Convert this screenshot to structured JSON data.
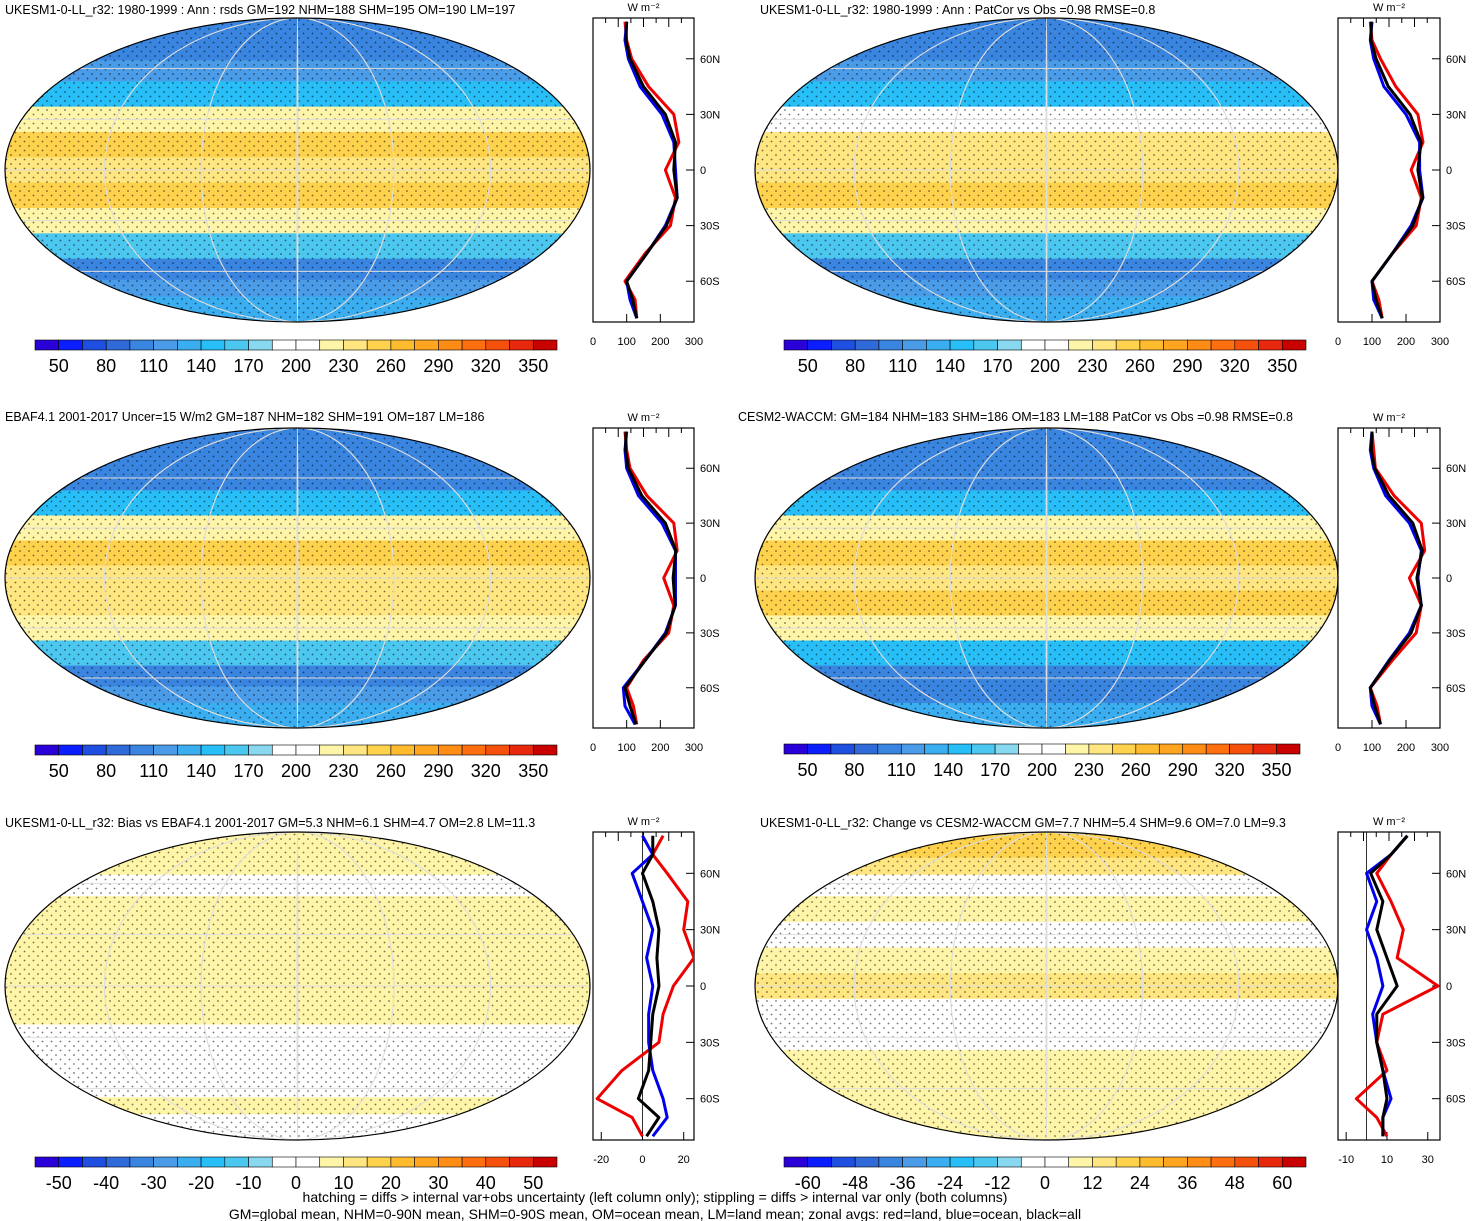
{
  "chart_data": [
    {
      "type": "map",
      "title": "UKESM1-0-LL_r32: 1980-1999 : Ann : rsds GM=192 NHM=188 SHM=195 OM=190 LM=197",
      "colorbar": {
        "range": [
          35,
          365
        ],
        "ticks": [
          50,
          80,
          110,
          140,
          170,
          200,
          230,
          260,
          290,
          320,
          350
        ]
      },
      "zonal": {
        "type": "line",
        "unit": "W m⁻²",
        "y": [
          80,
          70,
          60,
          45,
          30,
          15,
          0,
          -15,
          -30,
          -45,
          -60,
          -70,
          -80
        ],
        "ylim": [
          -82,
          82
        ],
        "yticks": [
          {
            "value": 60,
            "label": "60N"
          },
          {
            "value": 30,
            "label": "30N"
          },
          0,
          {
            "value": -30,
            "label": "30S"
          },
          {
            "value": -60,
            "label": "60S"
          }
        ],
        "xlim": [
          0,
          300
        ],
        "xticks": [
          0,
          100,
          200,
          300
        ],
        "series": [
          {
            "color": "#ee0000",
            "values": [
              95,
              100,
              115,
              165,
              240,
              255,
              215,
              245,
              230,
              155,
              95,
              125,
              130
            ]
          },
          {
            "color": "#0000ee",
            "values": [
              100,
              95,
              105,
              140,
              205,
              240,
              245,
              250,
              215,
              160,
              100,
              110,
              130
            ]
          },
          {
            "color": "#000000",
            "values": [
              100,
              98,
              110,
              150,
              215,
              245,
              240,
              250,
              218,
              160,
              100,
              118,
              130
            ]
          }
        ]
      }
    },
    {
      "type": "map",
      "title": "UKESM1-0-LL_r32: 1980-1999 : Ann : PatCor vs Obs =0.98 RMSE=0.8",
      "colorbar": {
        "range": [
          35,
          365
        ],
        "ticks": [
          50,
          80,
          110,
          140,
          170,
          200,
          230,
          260,
          290,
          320,
          350
        ]
      },
      "zonal": {
        "type": "line",
        "unit": "W m⁻²",
        "y": [
          80,
          70,
          60,
          45,
          30,
          15,
          0,
          -15,
          -30,
          -45,
          -60,
          -70,
          -80
        ],
        "ylim": [
          -82,
          82
        ],
        "yticks": [
          {
            "value": 60,
            "label": "60N"
          },
          {
            "value": 30,
            "label": "30N"
          },
          0,
          {
            "value": -30,
            "label": "30S"
          },
          {
            "value": -60,
            "label": "60S"
          }
        ],
        "xlim": [
          0,
          300
        ],
        "xticks": [
          0,
          100,
          200,
          300
        ],
        "series": [
          {
            "color": "#ee0000",
            "values": [
              95,
              100,
              125,
              170,
              235,
              250,
              215,
              245,
              230,
              160,
              100,
              120,
              130
            ]
          },
          {
            "color": "#0000ee",
            "values": [
              100,
              95,
              105,
              135,
              200,
              240,
              240,
              250,
              215,
              160,
              100,
              105,
              130
            ]
          },
          {
            "color": "#000000",
            "values": [
              98,
              97,
              112,
              148,
              212,
              244,
              235,
              248,
              220,
              160,
              100,
              112,
              130
            ]
          }
        ]
      }
    },
    {
      "type": "map",
      "title": "EBAF4.1 2001-2017 Uncer=15 W/m2 GM=187 NHM=182 SHM=191 OM=187 LM=186",
      "colorbar": {
        "range": [
          35,
          365
        ],
        "ticks": [
          50,
          80,
          110,
          140,
          170,
          200,
          230,
          260,
          290,
          320,
          350
        ]
      },
      "zonal": {
        "type": "line",
        "unit": "W m⁻²",
        "y": [
          80,
          70,
          60,
          45,
          30,
          15,
          0,
          -15,
          -30,
          -45,
          -60,
          -70,
          -80
        ],
        "ylim": [
          -82,
          82
        ],
        "yticks": [
          {
            "value": 60,
            "label": "60N"
          },
          {
            "value": 30,
            "label": "30N"
          },
          0,
          {
            "value": -30,
            "label": "30S"
          },
          {
            "value": -60,
            "label": "60S"
          }
        ],
        "xlim": [
          0,
          300
        ],
        "xticks": [
          0,
          100,
          200,
          300
        ],
        "series": [
          {
            "color": "#ee0000",
            "values": [
              95,
              100,
              110,
              160,
              240,
              250,
              210,
              240,
              225,
              150,
              100,
              120,
              130
            ]
          },
          {
            "color": "#0000ee",
            "values": [
              100,
              95,
              100,
              135,
              205,
              245,
              245,
              245,
              215,
              155,
              90,
              95,
              125
            ]
          },
          {
            "color": "#000000",
            "values": [
              98,
              97,
              105,
              145,
              215,
              246,
              238,
              244,
              218,
              155,
              95,
              110,
              128
            ]
          }
        ]
      }
    },
    {
      "type": "map",
      "title": "CESM2-WACCM: GM=184 NHM=183 SHM=186 OM=183 LM=188 PatCor vs Obs =0.98 RMSE=0.8",
      "colorbar": {
        "range": [
          35,
          365
        ],
        "ticks": [
          50,
          80,
          110,
          140,
          170,
          200,
          230,
          260,
          290,
          320,
          350
        ]
      },
      "zonal": {
        "type": "line",
        "unit": "W m⁻²",
        "y": [
          80,
          70,
          60,
          45,
          30,
          15,
          0,
          -15,
          -30,
          -45,
          -60,
          -70,
          -80
        ],
        "ylim": [
          -82,
          82
        ],
        "yticks": [
          {
            "value": 60,
            "label": "60N"
          },
          {
            "value": 30,
            "label": "30N"
          },
          0,
          {
            "value": -30,
            "label": "30S"
          },
          {
            "value": -60,
            "label": "60S"
          }
        ],
        "xlim": [
          0,
          300
        ],
        "xticks": [
          0,
          100,
          200,
          300
        ],
        "series": [
          {
            "color": "#ee0000",
            "values": [
              100,
              105,
              110,
              165,
              245,
              255,
              210,
              245,
              230,
              160,
              95,
              115,
              125
            ]
          },
          {
            "color": "#0000ee",
            "values": [
              100,
              95,
              105,
              140,
              210,
              245,
              235,
              245,
              210,
              150,
              95,
              100,
              125
            ]
          },
          {
            "color": "#000000",
            "values": [
              100,
              98,
              108,
              150,
              220,
              248,
              232,
              245,
              215,
              152,
              95,
              108,
              125
            ]
          }
        ]
      }
    },
    {
      "type": "map",
      "title": "UKESM1-0-LL_r32: Bias vs EBAF4.1 2001-2017 GM=5.3 NHM=6.1 SHM=4.7 OM=2.8 LM=11.3",
      "colorbar": {
        "range": [
          -55,
          55
        ],
        "ticks": [
          -50,
          -40,
          -30,
          -20,
          -10,
          0,
          10,
          20,
          30,
          40,
          50
        ]
      },
      "zonal": {
        "type": "line",
        "unit": "W m⁻²",
        "y": [
          80,
          70,
          60,
          45,
          30,
          15,
          0,
          -15,
          -30,
          -45,
          -60,
          -70,
          -80
        ],
        "ylim": [
          -82,
          82
        ],
        "yticks": [
          {
            "value": 60,
            "label": "60N"
          },
          {
            "value": 30,
            "label": "30N"
          },
          0,
          {
            "value": -30,
            "label": "30S"
          },
          {
            "value": -60,
            "label": "60S"
          }
        ],
        "xlim": [
          -24,
          25
        ],
        "xticks": [
          -20,
          0,
          20
        ],
        "series": [
          {
            "color": "#ee0000",
            "values": [
              10,
              5,
              12,
              22,
              20,
              25,
              15,
              10,
              8,
              -10,
              -22,
              -5,
              0
            ]
          },
          {
            "color": "#0000ee",
            "values": [
              0,
              5,
              -5,
              0,
              5,
              2,
              5,
              3,
              3,
              5,
              10,
              12,
              5
            ]
          },
          {
            "color": "#000000",
            "values": [
              5,
              5,
              0,
              5,
              8,
              7,
              8,
              5,
              4,
              3,
              -2,
              8,
              2
            ]
          }
        ]
      }
    },
    {
      "type": "map",
      "title": "UKESM1-0-LL_r32: Change vs CESM2-WACCM GM=7.7 NHM=5.4 SHM=9.6 OM=7.0 LM=9.3",
      "colorbar": {
        "range": [
          -66,
          66
        ],
        "ticks": [
          -60,
          -48,
          -36,
          -24,
          -12,
          0,
          12,
          24,
          36,
          48,
          60
        ]
      },
      "zonal": {
        "type": "line",
        "unit": "W m⁻²",
        "y": [
          80,
          70,
          60,
          45,
          30,
          15,
          0,
          -15,
          -30,
          -45,
          -60,
          -70,
          -80
        ],
        "ylim": [
          -82,
          82
        ],
        "yticks": [
          {
            "value": 60,
            "label": "60N"
          },
          {
            "value": 30,
            "label": "30N"
          },
          0,
          {
            "value": -30,
            "label": "30S"
          },
          {
            "value": -60,
            "label": "60S"
          }
        ],
        "xlim": [
          -14,
          36
        ],
        "xticks": [
          -10,
          10,
          30
        ],
        "series": [
          {
            "color": "#ee0000",
            "values": [
              20,
              12,
              5,
              12,
              18,
              15,
              35,
              8,
              5,
              10,
              -5,
              5,
              10
            ]
          },
          {
            "color": "#0000ee",
            "values": [
              20,
              12,
              0,
              5,
              0,
              5,
              8,
              3,
              5,
              8,
              12,
              8,
              8
            ]
          },
          {
            "color": "#000000",
            "values": [
              20,
              12,
              2,
              8,
              5,
              10,
              15,
              5,
              5,
              8,
              10,
              8,
              8
            ]
          }
        ]
      }
    }
  ],
  "palette": [
    "#2a00d8",
    "#0a1eff",
    "#1f4fe0",
    "#2f6ad8",
    "#3a85e0",
    "#4a9be8",
    "#3aaef0",
    "#28bff8",
    "#4cc8f0",
    "#88d8ef",
    "#ffffff",
    "#ffffff",
    "#fff5a8",
    "#ffe680",
    "#ffd24d",
    "#ffbb2e",
    "#ffa51f",
    "#ff8c14",
    "#ff6e0f",
    "#f5500c",
    "#e8280c",
    "#c80000"
  ],
  "footer": [
    "hatching = diffs > internal var+obs uncertainty (left column only); stippling = diffs > internal var only (both columns)",
    "GM=global mean, NHM=0-90N mean, SHM=0-90S mean, OM=ocean mean, LM=land mean; zonal avgs: red=land, blue=ocean, black=all"
  ]
}
